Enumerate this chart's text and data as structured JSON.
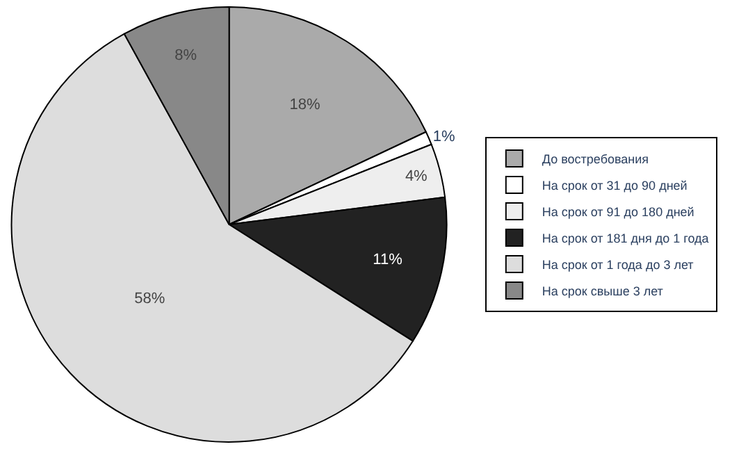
{
  "chart_data": {
    "type": "pie",
    "categories": [
      "До востребования",
      "На срок от 31 до 90 дней",
      "На срок от 91 до 180 дней",
      "На срок от 181 дня до 1 года",
      "На срок от 1 года до 3 лет",
      "На срок свыше 3 лет"
    ],
    "values": [
      18,
      1,
      4,
      11,
      58,
      8
    ],
    "colors": [
      "#aaaaaa",
      "#ffffff",
      "#eeeeee",
      "#222222",
      "#dddddd",
      "#888888"
    ],
    "value_labels": [
      "18%",
      "1%",
      "4%",
      "11%",
      "58%",
      "8%"
    ],
    "legend": "right"
  }
}
